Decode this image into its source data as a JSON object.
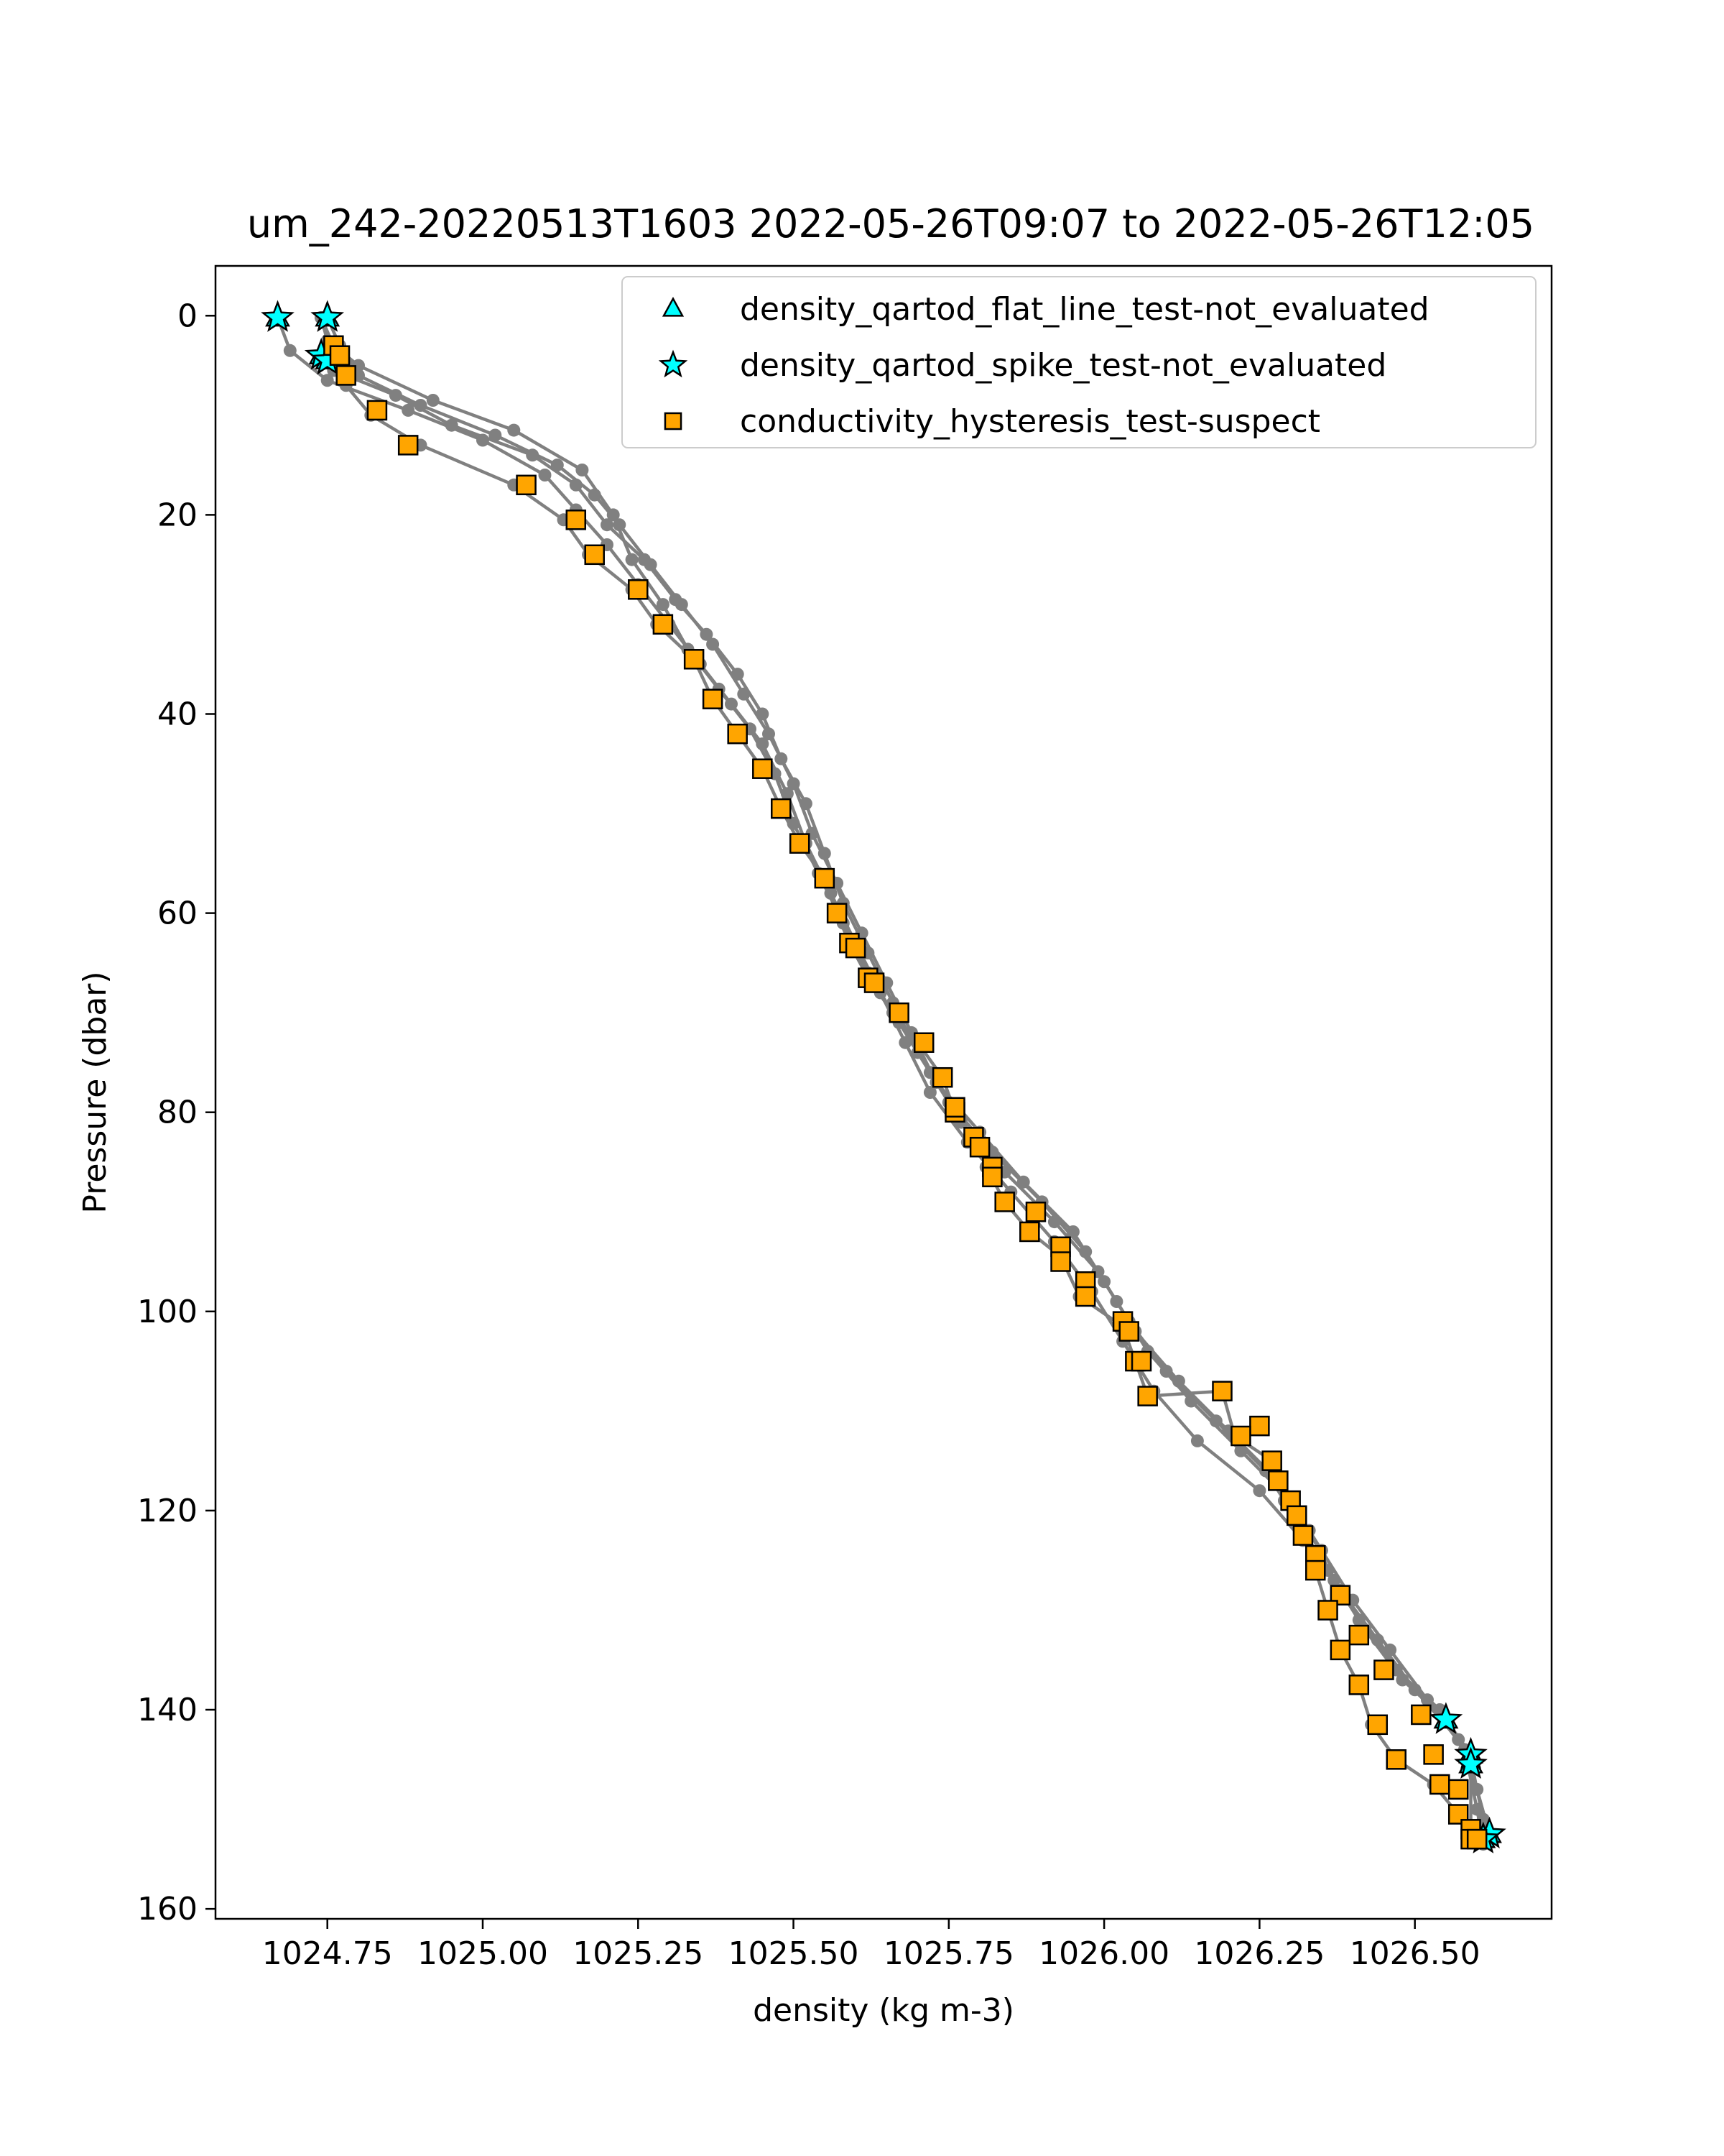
{
  "chart_data": {
    "type": "scatter",
    "title": "um_242-20220513T1603 2022-05-26T09:07 to 2022-05-26T12:05",
    "xlabel": "density (kg m-3)",
    "ylabel": "Pressure (dbar)",
    "xlim": [
      1024.57,
      1026.72
    ],
    "ylim": [
      161,
      -5
    ],
    "y_inverted": true,
    "xticks": [
      1024.75,
      1025.0,
      1025.25,
      1025.5,
      1025.75,
      1026.0,
      1026.25,
      1026.5
    ],
    "xtick_labels": [
      "1024.75",
      "1025.00",
      "1025.25",
      "1025.50",
      "1025.75",
      "1026.00",
      "1026.25",
      "1026.50"
    ],
    "yticks": [
      0,
      20,
      40,
      60,
      80,
      100,
      120,
      140,
      160
    ],
    "ytick_labels": [
      "0",
      "20",
      "40",
      "60",
      "80",
      "100",
      "120",
      "140",
      "160"
    ],
    "grid": false,
    "legend_position": "top-right",
    "profiles_color": "#808080",
    "profiles": [
      [
        [
          1024.67,
          0.2
        ],
        [
          1024.69,
          3.5
        ],
        [
          1024.75,
          6.5
        ],
        [
          1024.88,
          9.5
        ],
        [
          1025.0,
          12.5
        ],
        [
          1025.1,
          16
        ],
        [
          1025.15,
          19.5
        ],
        [
          1025.2,
          23
        ],
        [
          1025.25,
          27
        ],
        [
          1025.3,
          31
        ],
        [
          1025.35,
          35
        ],
        [
          1025.4,
          39
        ],
        [
          1025.45,
          43
        ],
        [
          1025.49,
          48
        ],
        [
          1025.52,
          53
        ],
        [
          1025.56,
          58
        ],
        [
          1025.6,
          63
        ],
        [
          1025.64,
          68
        ],
        [
          1025.68,
          73
        ],
        [
          1025.72,
          78
        ],
        [
          1025.78,
          83
        ],
        [
          1025.85,
          88
        ],
        [
          1025.92,
          93
        ],
        [
          1025.98,
          98
        ],
        [
          1026.03,
          103
        ],
        [
          1026.08,
          108
        ],
        [
          1026.15,
          113
        ],
        [
          1026.25,
          118
        ],
        [
          1026.32,
          123
        ],
        [
          1026.38,
          128
        ],
        [
          1026.44,
          133
        ],
        [
          1026.5,
          138
        ],
        [
          1026.57,
          143
        ],
        [
          1026.6,
          148
        ],
        [
          1026.62,
          152.5
        ]
      ],
      [
        [
          1024.75,
          0.2
        ],
        [
          1024.77,
          3
        ],
        [
          1024.8,
          6
        ],
        [
          1024.9,
          9
        ],
        [
          1025.02,
          12
        ],
        [
          1025.12,
          15
        ],
        [
          1025.18,
          18
        ],
        [
          1025.22,
          21
        ],
        [
          1025.27,
          25
        ],
        [
          1025.32,
          29
        ],
        [
          1025.37,
          33
        ],
        [
          1025.42,
          38
        ],
        [
          1025.46,
          42
        ],
        [
          1025.5,
          47
        ],
        [
          1025.53,
          52
        ],
        [
          1025.57,
          57
        ],
        [
          1025.61,
          62
        ],
        [
          1025.65,
          67
        ],
        [
          1025.69,
          72
        ],
        [
          1025.73,
          77
        ],
        [
          1025.8,
          82
        ],
        [
          1025.87,
          87
        ],
        [
          1025.95,
          92
        ],
        [
          1026.0,
          97
        ],
        [
          1026.05,
          102
        ],
        [
          1026.12,
          107
        ],
        [
          1026.2,
          112
        ],
        [
          1026.28,
          117
        ],
        [
          1026.33,
          122
        ],
        [
          1026.37,
          127
        ],
        [
          1026.42,
          132
        ],
        [
          1026.48,
          137
        ],
        [
          1026.55,
          141
        ],
        [
          1026.59,
          144.5
        ],
        [
          1026.59,
          153
        ]
      ],
      [
        [
          1024.74,
          0.2
        ],
        [
          1024.76,
          4
        ],
        [
          1024.78,
          7
        ],
        [
          1024.82,
          10
        ],
        [
          1024.9,
          13
        ],
        [
          1025.05,
          17
        ],
        [
          1025.13,
          20.5
        ],
        [
          1025.17,
          24
        ],
        [
          1025.24,
          27.5
        ],
        [
          1025.28,
          31
        ],
        [
          1025.34,
          34.5
        ],
        [
          1025.37,
          38.5
        ],
        [
          1025.41,
          42
        ],
        [
          1025.45,
          45.5
        ],
        [
          1025.48,
          49.5
        ],
        [
          1025.51,
          53
        ],
        [
          1025.55,
          56.5
        ],
        [
          1025.57,
          60
        ],
        [
          1025.59,
          63
        ],
        [
          1025.62,
          66.5
        ],
        [
          1025.66,
          70
        ],
        [
          1025.7,
          73
        ],
        [
          1025.74,
          76.5
        ],
        [
          1025.76,
          80
        ],
        [
          1025.79,
          82.5
        ],
        [
          1025.81,
          85.5
        ],
        [
          1025.84,
          89
        ],
        [
          1025.88,
          92
        ],
        [
          1025.93,
          94.5
        ],
        [
          1025.96,
          98.5
        ],
        [
          1026.03,
          101.5
        ],
        [
          1026.07,
          108.5
        ],
        [
          1026.19,
          108
        ],
        [
          1026.21,
          112.5
        ],
        [
          1026.27,
          115
        ],
        [
          1026.29,
          119
        ],
        [
          1026.32,
          122.5
        ],
        [
          1026.34,
          126
        ],
        [
          1026.36,
          130
        ],
        [
          1026.38,
          134
        ],
        [
          1026.41,
          137.5
        ],
        [
          1026.43,
          141.5
        ],
        [
          1026.47,
          145
        ],
        [
          1026.53,
          147.5
        ],
        [
          1026.57,
          150.5
        ],
        [
          1026.59,
          153
        ]
      ],
      [
        [
          1024.74,
          0.2
        ],
        [
          1024.76,
          3
        ],
        [
          1024.76,
          5.5
        ],
        [
          1024.86,
          8
        ],
        [
          1024.95,
          11
        ],
        [
          1025.08,
          14
        ],
        [
          1025.15,
          17
        ],
        [
          1025.2,
          21
        ],
        [
          1025.26,
          24.5
        ],
        [
          1025.31,
          28.5
        ],
        [
          1025.36,
          32
        ],
        [
          1025.41,
          36
        ],
        [
          1025.45,
          40
        ],
        [
          1025.48,
          44.5
        ],
        [
          1025.52,
          49
        ],
        [
          1025.55,
          54
        ],
        [
          1025.58,
          59
        ],
        [
          1025.62,
          64
        ],
        [
          1025.66,
          69
        ],
        [
          1025.7,
          74
        ],
        [
          1025.75,
          79
        ],
        [
          1025.82,
          84
        ],
        [
          1025.9,
          89
        ],
        [
          1025.97,
          94
        ],
        [
          1026.02,
          99
        ],
        [
          1026.07,
          104
        ],
        [
          1026.14,
          109
        ],
        [
          1026.22,
          114
        ],
        [
          1026.3,
          119
        ],
        [
          1026.35,
          124
        ],
        [
          1026.4,
          129
        ],
        [
          1026.46,
          134
        ],
        [
          1026.52,
          139
        ],
        [
          1026.58,
          144
        ],
        [
          1026.6,
          150
        ],
        [
          1026.61,
          153.5
        ]
      ],
      [
        [
          1024.74,
          0.2
        ],
        [
          1024.75,
          2.5
        ],
        [
          1024.8,
          5
        ],
        [
          1024.92,
          8.5
        ],
        [
          1025.05,
          11.5
        ],
        [
          1025.16,
          15.5
        ],
        [
          1025.21,
          20
        ],
        [
          1025.24,
          24.5
        ],
        [
          1025.29,
          29
        ],
        [
          1025.33,
          33.5
        ],
        [
          1025.38,
          37.5
        ],
        [
          1025.43,
          41.5
        ],
        [
          1025.47,
          46
        ],
        [
          1025.5,
          51
        ],
        [
          1025.54,
          56
        ],
        [
          1025.58,
          61
        ],
        [
          1025.62,
          66
        ],
        [
          1025.67,
          71
        ],
        [
          1025.72,
          76
        ],
        [
          1025.77,
          81
        ],
        [
          1025.84,
          86
        ],
        [
          1025.92,
          91
        ],
        [
          1025.99,
          96
        ],
        [
          1026.04,
          101
        ],
        [
          1026.1,
          106
        ],
        [
          1026.18,
          111
        ],
        [
          1026.26,
          116
        ],
        [
          1026.31,
          121
        ],
        [
          1026.36,
          126
        ],
        [
          1026.41,
          131
        ],
        [
          1026.47,
          136
        ],
        [
          1026.54,
          140
        ],
        [
          1026.59,
          145
        ],
        [
          1026.61,
          151
        ],
        [
          1026.62,
          153
        ]
      ]
    ],
    "series": [
      {
        "name": "density_qartod_flat_line_test-not_evaluated",
        "marker": "triangle",
        "color": "#00FFFF",
        "points": [
          [
            1024.67,
            0.2
          ],
          [
            1024.75,
            0.2
          ],
          [
            1024.74,
            4
          ],
          [
            1024.75,
            4.5
          ],
          [
            1026.55,
            141
          ],
          [
            1026.59,
            144.5
          ],
          [
            1026.59,
            145.5
          ],
          [
            1026.62,
            152.5
          ],
          [
            1026.61,
            153
          ]
        ]
      },
      {
        "name": "density_qartod_spike_test-not_evaluated",
        "marker": "star",
        "color": "#00FFFF",
        "points": [
          [
            1024.67,
            0.2
          ],
          [
            1024.75,
            0.2
          ],
          [
            1024.74,
            4
          ],
          [
            1024.75,
            4.5
          ],
          [
            1026.55,
            141
          ],
          [
            1026.59,
            144.5
          ],
          [
            1026.59,
            145.5
          ],
          [
            1026.62,
            152.5
          ],
          [
            1026.61,
            153
          ]
        ]
      },
      {
        "name": "conductivity_hysteresis_test-suspect",
        "marker": "square",
        "color": "#FFA500",
        "points": [
          [
            1024.76,
            3
          ],
          [
            1024.77,
            4
          ],
          [
            1024.78,
            6
          ],
          [
            1024.83,
            9.5
          ],
          [
            1024.88,
            13
          ],
          [
            1025.07,
            17
          ],
          [
            1025.15,
            20.5
          ],
          [
            1025.18,
            24
          ],
          [
            1025.25,
            27.5
          ],
          [
            1025.29,
            31
          ],
          [
            1025.34,
            34.5
          ],
          [
            1025.37,
            38.5
          ],
          [
            1025.41,
            42
          ],
          [
            1025.45,
            45.5
          ],
          [
            1025.48,
            49.5
          ],
          [
            1025.51,
            53
          ],
          [
            1025.55,
            56.5
          ],
          [
            1025.57,
            60
          ],
          [
            1025.59,
            63
          ],
          [
            1025.6,
            63.5
          ],
          [
            1025.62,
            66.5
          ],
          [
            1025.63,
            67
          ],
          [
            1025.67,
            70
          ],
          [
            1025.71,
            73
          ],
          [
            1025.74,
            76.5
          ],
          [
            1025.76,
            80
          ],
          [
            1025.76,
            79.5
          ],
          [
            1025.79,
            82.5
          ],
          [
            1025.8,
            83.5
          ],
          [
            1025.82,
            85.5
          ],
          [
            1025.82,
            86.5
          ],
          [
            1025.84,
            89
          ],
          [
            1025.89,
            90
          ],
          [
            1025.88,
            92
          ],
          [
            1025.93,
            93.5
          ],
          [
            1025.93,
            95
          ],
          [
            1025.97,
            97
          ],
          [
            1025.97,
            98.5
          ],
          [
            1026.03,
            101
          ],
          [
            1026.04,
            102
          ],
          [
            1026.05,
            105
          ],
          [
            1026.06,
            105
          ],
          [
            1026.07,
            108.5
          ],
          [
            1026.19,
            108
          ],
          [
            1026.25,
            111.5
          ],
          [
            1026.22,
            112.5
          ],
          [
            1026.27,
            115
          ],
          [
            1026.28,
            117
          ],
          [
            1026.3,
            119
          ],
          [
            1026.31,
            120.5
          ],
          [
            1026.32,
            122.5
          ],
          [
            1026.34,
            124.5
          ],
          [
            1026.34,
            126
          ],
          [
            1026.38,
            128.5
          ],
          [
            1026.36,
            130
          ],
          [
            1026.41,
            132.5
          ],
          [
            1026.38,
            134
          ],
          [
            1026.45,
            136
          ],
          [
            1026.41,
            137.5
          ],
          [
            1026.51,
            140.5
          ],
          [
            1026.44,
            141.5
          ],
          [
            1026.53,
            144.5
          ],
          [
            1026.47,
            145
          ],
          [
            1026.54,
            147.5
          ],
          [
            1026.57,
            148
          ],
          [
            1026.57,
            150.5
          ],
          [
            1026.59,
            152
          ],
          [
            1026.59,
            153
          ],
          [
            1026.6,
            153
          ]
        ]
      }
    ]
  }
}
